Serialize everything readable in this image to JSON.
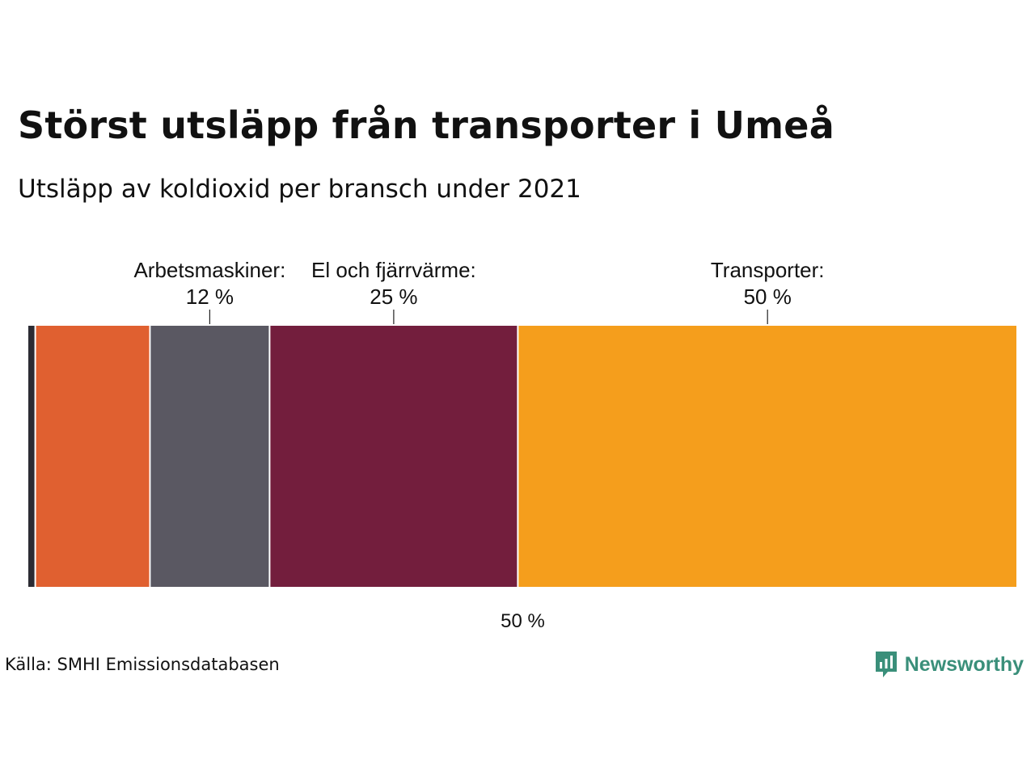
{
  "header": {
    "title": "Störst utsläpp från transporter i Umeå",
    "subtitle": "Utsläpp av koldioxid per bransch under 2021"
  },
  "chart_data": {
    "type": "bar",
    "orientation": "horizontal-stacked",
    "title": "Störst utsläpp från transporter i Umeå",
    "subtitle": "Utsläpp av koldioxid per bransch under 2021",
    "xlabel": "",
    "ylabel": "",
    "xlim": [
      0,
      100
    ],
    "grid": false,
    "legend": "none",
    "midline_label": "50 %",
    "segments": [
      {
        "name": "",
        "value": 0.7,
        "color": "#2b2b33",
        "label": ""
      },
      {
        "name": "",
        "value": 11.6,
        "color": "#e06030",
        "label": ""
      },
      {
        "name": "Arbetsmaskiner:",
        "value": 12.1,
        "color": "#5a5862",
        "label": "12 %"
      },
      {
        "name": "El och fjärrvärme:",
        "value": 25.1,
        "color": "#731e3d",
        "label": "25 %"
      },
      {
        "name": "Transporter:",
        "value": 50.5,
        "color": "#f59e1c",
        "label": "50 %"
      }
    ]
  },
  "footer": {
    "source": "Källa: SMHI Emissionsdatabasen",
    "brand": "Newsworthy",
    "brand_color": "#3a8f7a",
    "brand_icon": "bar-chart-speech-bubble-icon"
  }
}
